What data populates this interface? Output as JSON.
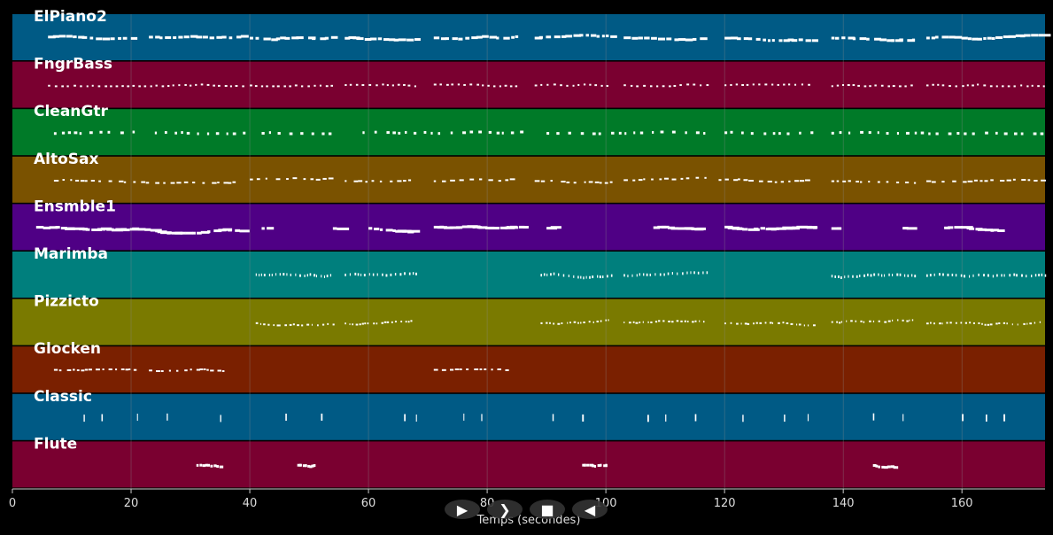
{
  "tracks": [
    {
      "name": "ElPiano2",
      "color": "#005a85",
      "pattern": "piano"
    },
    {
      "name": "FngrBass",
      "color": "#7a0030",
      "pattern": "bass"
    },
    {
      "name": "CleanGtr",
      "color": "#007a28",
      "pattern": "guitar"
    },
    {
      "name": "AltoSax",
      "color": "#7a5200",
      "pattern": "sax"
    },
    {
      "name": "Ensmble1",
      "color": "#4f0085",
      "pattern": "ensemble"
    },
    {
      "name": "Marimba",
      "color": "#007f7d",
      "pattern": "marimba"
    },
    {
      "name": "Pizzicto",
      "color": "#7a7a00",
      "pattern": "pizz"
    },
    {
      "name": "Glocken",
      "color": "#7a2000",
      "pattern": "glocken"
    },
    {
      "name": "Classic",
      "color": "#005a85",
      "pattern": "classic"
    },
    {
      "name": "Flute",
      "color": "#7a0030",
      "pattern": "flute"
    }
  ],
  "axis": {
    "xmin": 0,
    "xmax": 174,
    "ticks": [
      0,
      20,
      40,
      60,
      80,
      100,
      120,
      140,
      160
    ],
    "tick_labels": [
      "0",
      "20",
      "40",
      "60",
      "80",
      "100",
      "120",
      "140",
      "160"
    ],
    "xlabel": "Temps (secondes)"
  },
  "controls": [
    {
      "name": "play-button",
      "icon": "play-icon",
      "glyph": "▶"
    },
    {
      "name": "forward-button",
      "icon": "fast-forward-icon",
      "glyph": "❯"
    },
    {
      "name": "stop-button",
      "icon": "stop-icon",
      "glyph": "■"
    },
    {
      "name": "rewind-button",
      "icon": "rewind-icon",
      "glyph": "◀"
    }
  ],
  "colors": {
    "background": "#000000",
    "note": "#ffffff",
    "grid": "#8a8a8a"
  }
}
